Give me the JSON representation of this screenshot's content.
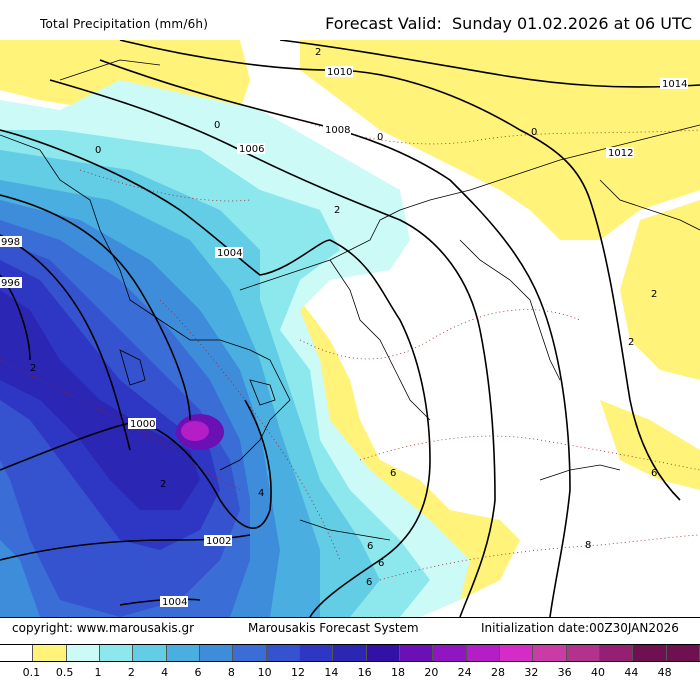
{
  "header": {
    "title": "Total Precipitation (mm/6h)",
    "forecast": "Forecast Valid:  Sunday 01.02.2026 at 06 UTC"
  },
  "footer": {
    "copyright": "copyright: www.marousakis.gr",
    "system": "Marousakis Forecast System",
    "init": "Initialization date:00Z30JAN2026"
  },
  "legend": {
    "labels": [
      "0.1",
      "0.5",
      "1",
      "2",
      "4",
      "6",
      "8",
      "10",
      "12",
      "14",
      "16",
      "18",
      "20",
      "24",
      "28",
      "32",
      "36",
      "40",
      "44",
      "48"
    ],
    "colors": [
      "#ffffff",
      "#fff37a",
      "#ccfaf7",
      "#8de8ee",
      "#62cde5",
      "#4aaee0",
      "#3e8ddb",
      "#3a6ed6",
      "#3553cf",
      "#2e37c4",
      "#2b26b3",
      "#3311a7",
      "#6a10b5",
      "#8f16c1",
      "#b41ec6",
      "#d52cc8",
      "#cb3ba6",
      "#b2328c",
      "#951f72",
      "#6f1050"
    ]
  },
  "isobars": [
    "998",
    "996",
    "1000",
    "1002",
    "1004",
    "1004",
    "1006",
    "1008",
    "1010",
    "1012",
    "1014"
  ],
  "temp_labels": [
    "2",
    "2",
    "0",
    "0",
    "0",
    "0",
    "2",
    "2",
    "2",
    "2",
    "4",
    "6",
    "6",
    "6",
    "6",
    "6",
    "8"
  ]
}
